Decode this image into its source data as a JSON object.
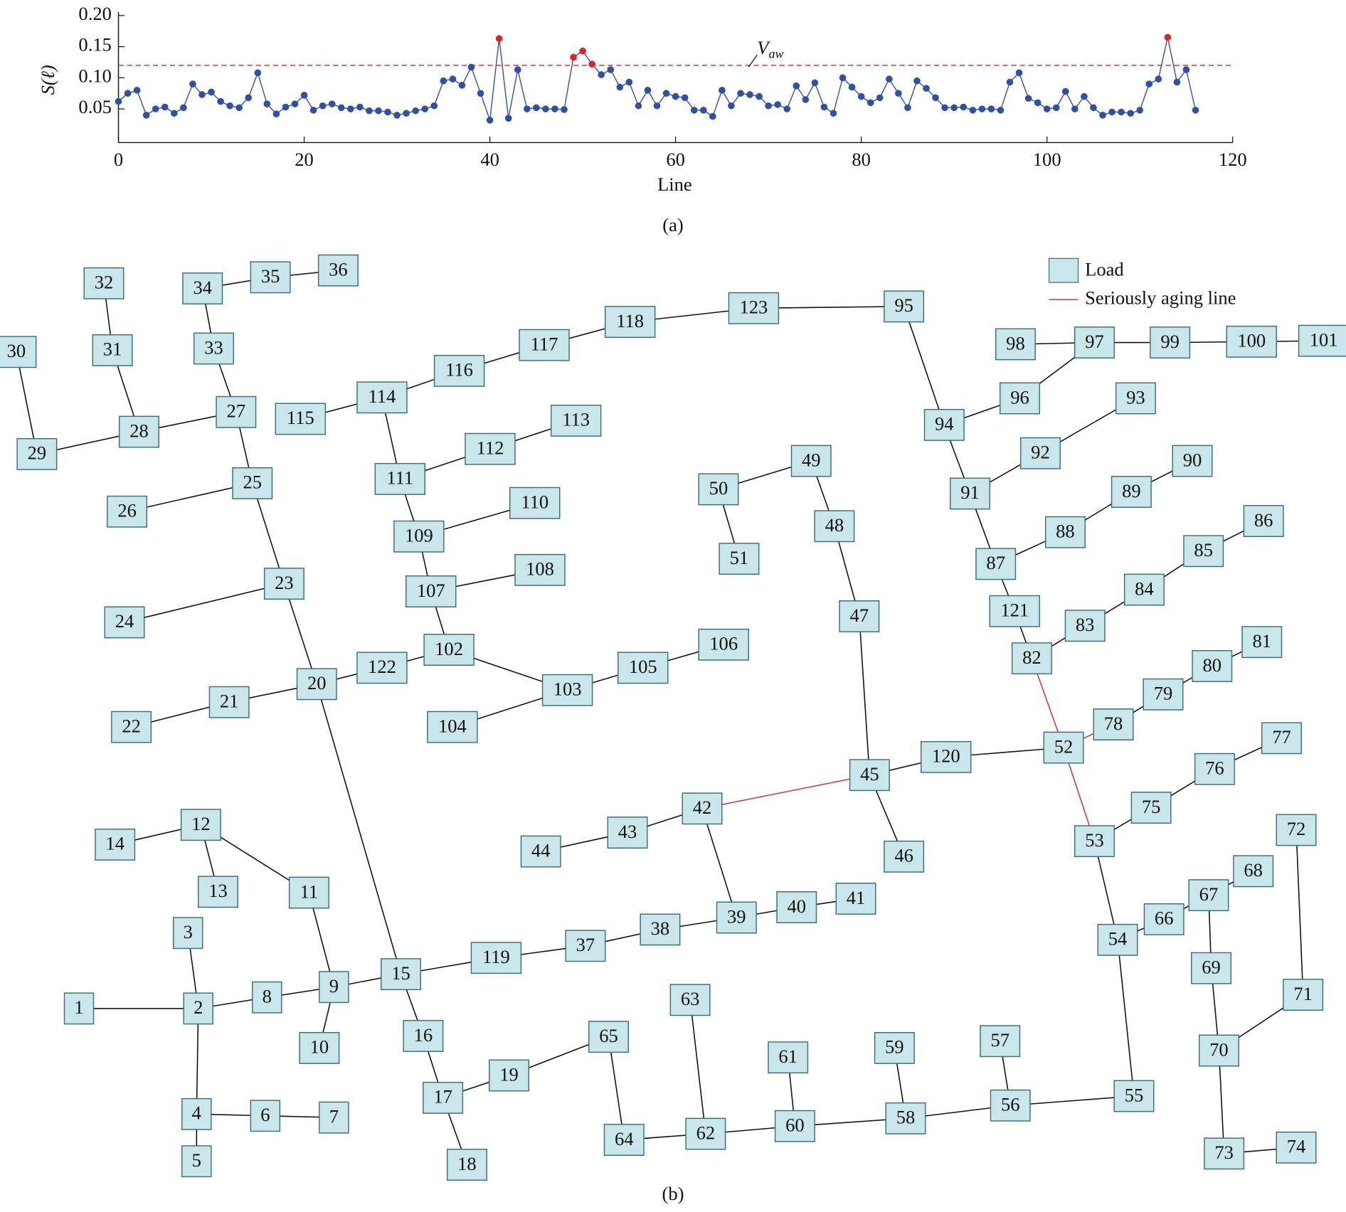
{
  "chart_data": {
    "type": "line",
    "ylabel": "S(ℓ)",
    "xlabel": "Line",
    "caption": "(a)",
    "x": [
      0,
      1,
      2,
      3,
      4,
      5,
      6,
      7,
      8,
      9,
      10,
      11,
      12,
      13,
      14,
      15,
      16,
      17,
      18,
      19,
      20,
      21,
      22,
      23,
      24,
      25,
      26,
      27,
      28,
      29,
      30,
      31,
      32,
      33,
      34,
      35,
      36,
      37,
      38,
      39,
      40,
      41,
      42,
      43,
      44,
      45,
      46,
      47,
      48,
      49,
      50,
      51,
      52,
      53,
      54,
      55,
      56,
      57,
      58,
      59,
      60,
      61,
      62,
      63,
      64,
      65,
      66,
      67,
      68,
      69,
      70,
      71,
      72,
      73,
      74,
      75,
      76,
      77,
      78,
      79,
      80,
      81,
      82,
      83,
      84,
      85,
      86,
      87,
      88,
      89,
      90,
      91,
      92,
      93,
      94,
      95,
      96,
      97,
      98,
      99,
      100,
      101,
      102,
      103,
      104,
      105,
      106,
      107,
      108,
      109,
      110,
      111,
      112,
      113,
      114,
      115,
      116
    ],
    "values": [
      0.062,
      0.075,
      0.08,
      0.04,
      0.05,
      0.053,
      0.043,
      0.052,
      0.09,
      0.073,
      0.077,
      0.062,
      0.055,
      0.052,
      0.068,
      0.108,
      0.058,
      0.042,
      0.053,
      0.058,
      0.072,
      0.048,
      0.055,
      0.058,
      0.052,
      0.05,
      0.053,
      0.047,
      0.047,
      0.045,
      0.04,
      0.043,
      0.047,
      0.05,
      0.055,
      0.095,
      0.098,
      0.088,
      0.117,
      0.075,
      0.032,
      0.163,
      0.035,
      0.113,
      0.05,
      0.052,
      0.05,
      0.05,
      0.049,
      0.133,
      0.143,
      0.122,
      0.105,
      0.113,
      0.085,
      0.093,
      0.055,
      0.08,
      0.055,
      0.075,
      0.07,
      0.068,
      0.048,
      0.048,
      0.038,
      0.08,
      0.055,
      0.075,
      0.073,
      0.07,
      0.055,
      0.057,
      0.05,
      0.087,
      0.065,
      0.092,
      0.053,
      0.043,
      0.1,
      0.085,
      0.07,
      0.06,
      0.068,
      0.098,
      0.075,
      0.052,
      0.095,
      0.083,
      0.068,
      0.052,
      0.052,
      0.053,
      0.048,
      0.05,
      0.05,
      0.048,
      0.093,
      0.108,
      0.067,
      0.06,
      0.05,
      0.052,
      0.078,
      0.05,
      0.07,
      0.052,
      0.04,
      0.045,
      0.045,
      0.043,
      0.048,
      0.09,
      0.098,
      0.165,
      0.093,
      0.113,
      0.048
    ],
    "color": "#2f4fa8",
    "highlight_color": "#e0241f",
    "line_color": "#3a55a5",
    "threshold": {
      "value": 0.12,
      "label": "V",
      "sub": "aw",
      "color": "#d9383a"
    },
    "xlim": [
      0,
      120
    ],
    "xticks": [
      0,
      20,
      40,
      60,
      80,
      100,
      120
    ],
    "ylim": [
      -0.004,
      0.2
    ],
    "yticks": [
      {
        "value": 0.05,
        "label": "0.05"
      },
      {
        "value": 0.1,
        "label": "0.10"
      },
      {
        "value": 0.15,
        "label": "0.15"
      },
      {
        "value": 0.2,
        "label": "0.20"
      }
    ]
  },
  "diagram": {
    "caption": "(b)",
    "legend": {
      "load": "Load",
      "aging": "Seriously aging line"
    },
    "nodes": [
      "1",
      "2",
      "3",
      "4",
      "5",
      "6",
      "7",
      "8",
      "9",
      "10",
      "11",
      "12",
      "13",
      "14",
      "15",
      "16",
      "17",
      "18",
      "19",
      "20",
      "21",
      "22",
      "23",
      "24",
      "25",
      "26",
      "27",
      "28",
      "29",
      "30",
      "31",
      "32",
      "33",
      "34",
      "35",
      "36",
      "37",
      "38",
      "39",
      "40",
      "41",
      "42",
      "43",
      "44",
      "45",
      "46",
      "47",
      "48",
      "49",
      "50",
      "51",
      "52",
      "53",
      "54",
      "55",
      "56",
      "57",
      "58",
      "59",
      "60",
      "61",
      "62",
      "63",
      "64",
      "65",
      "66",
      "67",
      "68",
      "69",
      "70",
      "71",
      "72",
      "73",
      "74",
      "75",
      "76",
      "77",
      "78",
      "79",
      "80",
      "81",
      "82",
      "83",
      "84",
      "85",
      "86",
      "87",
      "88",
      "89",
      "90",
      "91",
      "92",
      "93",
      "94",
      "95",
      "96",
      "97",
      "98",
      "99",
      "100",
      "101",
      "102",
      "103",
      "104",
      "105",
      "106",
      "107",
      "108",
      "109",
      "110",
      "111",
      "112",
      "113",
      "114",
      "115",
      "116",
      "117",
      "118",
      "119",
      "120",
      "121",
      "122",
      "123"
    ],
    "edges": [
      [
        "1",
        "2"
      ],
      [
        "2",
        "3"
      ],
      [
        "2",
        "8"
      ],
      [
        "2",
        "4"
      ],
      [
        "4",
        "5"
      ],
      [
        "4",
        "6"
      ],
      [
        "6",
        "7"
      ],
      [
        "8",
        "9"
      ],
      [
        "9",
        "10"
      ],
      [
        "9",
        "11"
      ],
      [
        "11",
        "12"
      ],
      [
        "12",
        "14"
      ],
      [
        "12",
        "13"
      ],
      [
        "9",
        "15"
      ],
      [
        "15",
        "119"
      ],
      [
        "119",
        "37"
      ],
      [
        "37",
        "38"
      ],
      [
        "38",
        "39"
      ],
      [
        "39",
        "40"
      ],
      [
        "40",
        "41"
      ],
      [
        "39",
        "42"
      ],
      [
        "42",
        "43"
      ],
      [
        "43",
        "44"
      ],
      [
        "45",
        "46"
      ],
      [
        "45",
        "47"
      ],
      [
        "47",
        "48"
      ],
      [
        "48",
        "49"
      ],
      [
        "49",
        "50"
      ],
      [
        "50",
        "51"
      ],
      [
        "45",
        "120"
      ],
      [
        "120",
        "52"
      ],
      [
        "78",
        "79"
      ],
      [
        "79",
        "80"
      ],
      [
        "80",
        "81"
      ],
      [
        "53",
        "75"
      ],
      [
        "75",
        "76"
      ],
      [
        "76",
        "77"
      ],
      [
        "53",
        "54"
      ],
      [
        "54",
        "66"
      ],
      [
        "66",
        "67"
      ],
      [
        "67",
        "68"
      ],
      [
        "67",
        "69"
      ],
      [
        "69",
        "70"
      ],
      [
        "70",
        "71"
      ],
      [
        "71",
        "72"
      ],
      [
        "70",
        "73"
      ],
      [
        "73",
        "74"
      ],
      [
        "54",
        "55"
      ],
      [
        "55",
        "56"
      ],
      [
        "56",
        "57"
      ],
      [
        "56",
        "58"
      ],
      [
        "58",
        "59"
      ],
      [
        "58",
        "60"
      ],
      [
        "60",
        "61"
      ],
      [
        "60",
        "62"
      ],
      [
        "62",
        "63"
      ],
      [
        "62",
        "64"
      ],
      [
        "64",
        "65"
      ],
      [
        "65",
        "19"
      ],
      [
        "19",
        "17"
      ],
      [
        "17",
        "18"
      ],
      [
        "15",
        "16"
      ],
      [
        "16",
        "17"
      ],
      [
        "15",
        "20"
      ],
      [
        "20",
        "23"
      ],
      [
        "20",
        "21"
      ],
      [
        "21",
        "22"
      ],
      [
        "20",
        "122"
      ],
      [
        "122",
        "102"
      ],
      [
        "102",
        "103"
      ],
      [
        "103",
        "104"
      ],
      [
        "103",
        "105"
      ],
      [
        "105",
        "106"
      ],
      [
        "102",
        "107"
      ],
      [
        "107",
        "108"
      ],
      [
        "107",
        "109"
      ],
      [
        "109",
        "110"
      ],
      [
        "109",
        "111"
      ],
      [
        "111",
        "112"
      ],
      [
        "112",
        "113"
      ],
      [
        "111",
        "114"
      ],
      [
        "114",
        "115"
      ],
      [
        "114",
        "116"
      ],
      [
        "116",
        "117"
      ],
      [
        "117",
        "118"
      ],
      [
        "118",
        "123"
      ],
      [
        "123",
        "95"
      ],
      [
        "95",
        "94"
      ],
      [
        "94",
        "96"
      ],
      [
        "96",
        "97"
      ],
      [
        "97",
        "98"
      ],
      [
        "97",
        "99"
      ],
      [
        "99",
        "100"
      ],
      [
        "100",
        "101"
      ],
      [
        "94",
        "91"
      ],
      [
        "91",
        "92"
      ],
      [
        "92",
        "93"
      ],
      [
        "91",
        "87"
      ],
      [
        "87",
        "88"
      ],
      [
        "88",
        "89"
      ],
      [
        "89",
        "90"
      ],
      [
        "87",
        "121"
      ],
      [
        "121",
        "82"
      ],
      [
        "82",
        "83"
      ],
      [
        "83",
        "84"
      ],
      [
        "84",
        "85"
      ],
      [
        "85",
        "86"
      ],
      [
        "23",
        "24"
      ],
      [
        "23",
        "25"
      ],
      [
        "25",
        "26"
      ],
      [
        "25",
        "27"
      ],
      [
        "27",
        "28"
      ],
      [
        "28",
        "29"
      ],
      [
        "29",
        "30"
      ],
      [
        "28",
        "31"
      ],
      [
        "31",
        "32"
      ],
      [
        "27",
        "33"
      ],
      [
        "33",
        "34"
      ],
      [
        "34",
        "35"
      ],
      [
        "35",
        "36"
      ]
    ],
    "aging_edges": [
      [
        "42",
        "45"
      ],
      [
        "52",
        "82"
      ],
      [
        "52",
        "53"
      ],
      [
        "52",
        "78"
      ]
    ]
  }
}
